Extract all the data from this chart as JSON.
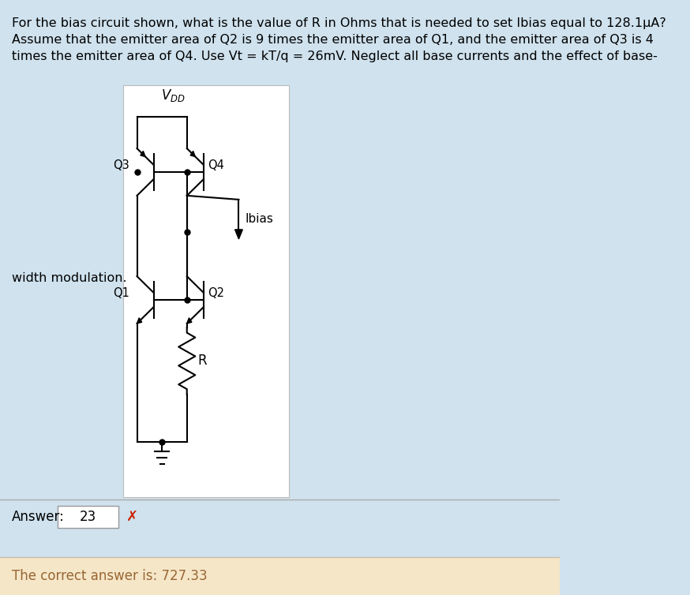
{
  "bg_color": "#cfe2ee",
  "white_bg": "#ffffff",
  "question_text_line1": "For the bias circuit shown, what is the value of R in Ohms that is needed to set Ibias equal to 128.1μA?",
  "question_text_line2": "Assume that the emitter area of Q2 is 9 times the emitter area of Q1, and the emitter area of Q3 is 4",
  "question_text_line3": "times the emitter area of Q4. Use Vt = kT/q = 26mV. Neglect all base currents and the effect of base-",
  "width_mod_text": "width modulation.",
  "q1_label": "Q1",
  "q2_label": "Q2",
  "q3_label": "Q3",
  "q4_label": "Q4",
  "ibias_label": "Ibias",
  "r_label": "R",
  "answer_label": "Answer:",
  "answer_value": "23",
  "correct_answer_text": "The correct answer is: 727.33",
  "answer_bg": "#f5e6c8",
  "correct_text_color": "#996633",
  "font_size_text": 11.5,
  "font_size_labels": 10.5
}
